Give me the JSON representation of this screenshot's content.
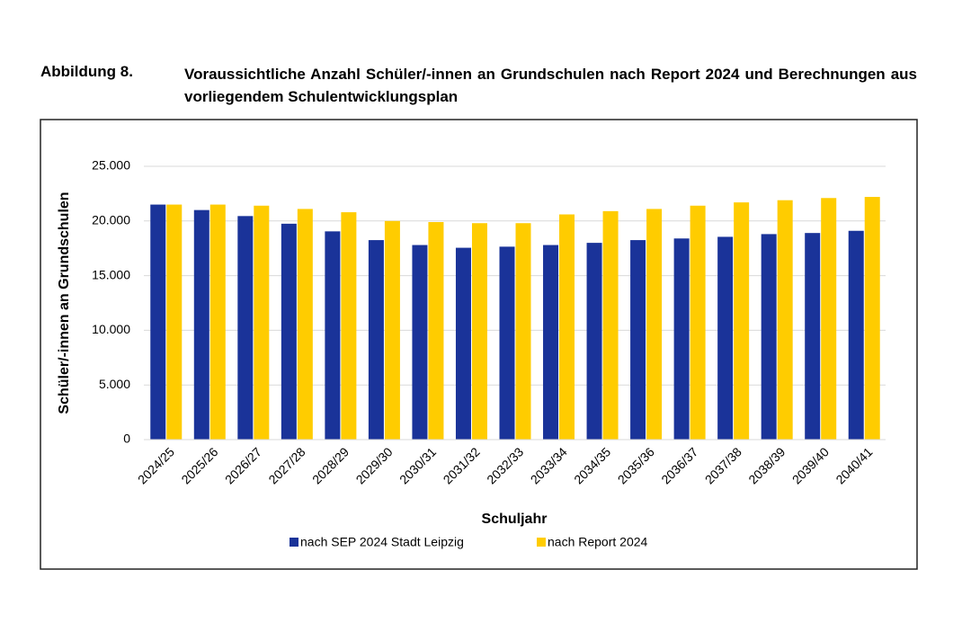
{
  "figure_label": "Abbildung 8.",
  "chart_data": {
    "type": "bar",
    "title": "Voraussichtliche Anzahl Schüler/-innen an Grundschulen nach Report 2024 und Berechnungen aus vorliegendem Schulentwicklungsplan",
    "x_label": "Schuljahr",
    "y_label": "Schüler/-innen an Grundschulen",
    "categories": [
      "2024/25",
      "2025/26",
      "2026/27",
      "2027/28",
      "2028/29",
      "2029/30",
      "2030/31",
      "2031/32",
      "2032/33",
      "2033/34",
      "2034/35",
      "2035/36",
      "2036/37",
      "2037/38",
      "2038/39",
      "2039/40",
      "2040/41"
    ],
    "series": [
      {
        "name": "nach SEP 2024 Stadt Leipzig",
        "color": "#1a3399",
        "values": [
          21500,
          21000,
          20450,
          19750,
          19050,
          18250,
          17800,
          17550,
          17650,
          17800,
          18000,
          18250,
          18400,
          18550,
          18800,
          18900,
          19100
        ]
      },
      {
        "name": "nach Report 2024",
        "color": "#ffcc00",
        "values": [
          21500,
          21500,
          21400,
          21100,
          20800,
          20000,
          19900,
          19800,
          19800,
          20600,
          20900,
          21100,
          21400,
          21700,
          21900,
          22100,
          22200
        ]
      }
    ],
    "ylim": [
      0,
      25000
    ],
    "yticks": [
      0,
      {
        "value": 5000,
        "label": "5.000"
      },
      {
        "value": 10000,
        "label": "10.000"
      },
      {
        "value": 15000,
        "label": "15.000"
      },
      {
        "value": 20000,
        "label": "20.000"
      },
      {
        "value": 25000,
        "label": "25.000"
      }
    ],
    "grid": true,
    "legend": "bottom"
  }
}
